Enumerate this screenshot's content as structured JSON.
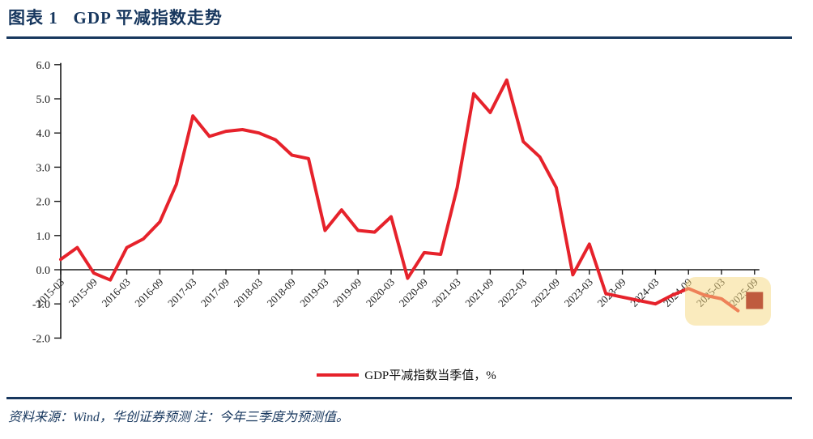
{
  "header": {
    "title": "图表 1   GDP 平减指数走势"
  },
  "legend": {
    "label": "GDP平减指数当季值，%"
  },
  "footer": {
    "text": "资料来源：Wind，华创证券预测 注：今年三季度为预测值。"
  },
  "colors": {
    "navy": "#17375E",
    "series_red": "#E6222B",
    "axis": "#1a1a1a",
    "tick_text": "#1a1a1a",
    "highlight_fill": "rgba(246,216,130,0.52)",
    "forecast_marker": "#BF5B3E"
  },
  "chart_data": {
    "type": "line",
    "title": "GDP 平减指数走势",
    "ylabel": "%",
    "ylim": [
      -2.0,
      6.0
    ],
    "grid": false,
    "legend_position": "bottom",
    "y_tick_labels": [
      "6.0",
      "5.0",
      "4.0",
      "3.0",
      "2.0",
      "1.0",
      "0.0",
      "-1.0",
      "-2.0"
    ],
    "x_tick_labels": [
      "2015-03",
      "2015-09",
      "2016-03",
      "2016-09",
      "2017-03",
      "2017-09",
      "2018-03",
      "2018-09",
      "2019-03",
      "2019-09",
      "2020-03",
      "2020-09",
      "2021-03",
      "2021-09",
      "2022-03",
      "2022-09",
      "2023-03",
      "2023-09",
      "2024-03",
      "2024-09",
      "2025-03",
      "2025-09"
    ],
    "categories": [
      "2015-03",
      "2015-06",
      "2015-09",
      "2015-12",
      "2016-03",
      "2016-06",
      "2016-09",
      "2016-12",
      "2017-03",
      "2017-06",
      "2017-09",
      "2017-12",
      "2018-03",
      "2018-06",
      "2018-09",
      "2018-12",
      "2019-03",
      "2019-06",
      "2019-09",
      "2019-12",
      "2020-03",
      "2020-06",
      "2020-09",
      "2020-12",
      "2021-03",
      "2021-06",
      "2021-09",
      "2021-12",
      "2022-03",
      "2022-06",
      "2022-09",
      "2022-12",
      "2023-03",
      "2023-06",
      "2023-09",
      "2023-12",
      "2024-03",
      "2024-06",
      "2024-09",
      "2024-12",
      "2025-03",
      "2025-06",
      "2025-09"
    ],
    "series": [
      {
        "name": "GDP平减指数当季值，%",
        "values": [
          0.3,
          0.65,
          -0.1,
          -0.3,
          0.65,
          0.9,
          1.4,
          2.5,
          4.5,
          3.9,
          4.05,
          4.1,
          4.0,
          3.8,
          3.35,
          3.25,
          1.15,
          1.75,
          1.15,
          1.1,
          1.55,
          -0.25,
          0.5,
          0.45,
          2.4,
          5.15,
          4.6,
          5.55,
          3.75,
          3.3,
          2.4,
          -0.15,
          0.75,
          -0.7,
          -0.8,
          -0.9,
          -1.0,
          -0.75,
          -0.55,
          -0.75,
          -0.85,
          -1.2
        ]
      }
    ],
    "forecast": {
      "category": "2025-09",
      "value": -0.9,
      "marker": "square",
      "note": "今年三季度为预测值"
    },
    "highlight_region": {
      "from": "2024-09",
      "to": "2025-09"
    }
  }
}
